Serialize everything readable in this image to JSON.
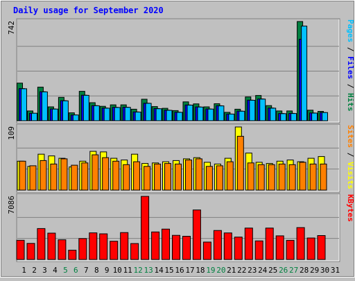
{
  "chart_data": [
    {
      "type": "bar",
      "title": "Daily usage for September 2020",
      "panel": "hits-files-pages",
      "ymax_label": "742",
      "ylim": [
        0,
        742
      ],
      "legend": [
        {
          "text": "Pages",
          "color": "#00c0ff"
        },
        {
          "text": "Files",
          "color": "#0000ff"
        },
        {
          "text": "Hits",
          "color": "#008040"
        }
      ],
      "legend_separator": " / ",
      "categories": [
        "1",
        "2",
        "3",
        "4",
        "5",
        "6",
        "7",
        "8",
        "9",
        "10",
        "11",
        "12",
        "13",
        "14",
        "15",
        "16",
        "17",
        "18",
        "19",
        "20",
        "21",
        "22",
        "23",
        "24",
        "25",
        "26",
        "27",
        "28",
        "29",
        "30",
        "31"
      ],
      "series": [
        {
          "name": "Hits",
          "color": "#008040",
          "values": [
            281,
            73,
            251,
            104,
            175,
            59,
            220,
            135,
            108,
            119,
            119,
            86,
            161,
            106,
            93,
            76,
            141,
            126,
            104,
            127,
            63,
            86,
            178,
            189,
            113,
            73,
            73,
            742,
            79,
            70,
            0
          ]
        },
        {
          "name": "Files",
          "color": "#0000ff",
          "values": [
            240,
            55,
            217,
            88,
            150,
            43,
            191,
            113,
            95,
            100,
            101,
            66,
            131,
            91,
            79,
            64,
            118,
            103,
            88,
            112,
            50,
            72,
            154,
            163,
            95,
            54,
            55,
            609,
            58,
            61,
            0
          ]
        },
        {
          "name": "Pages",
          "color": "#00c0ff",
          "values": [
            239,
            56,
            216,
            87,
            149,
            43,
            190,
            112,
            94,
            99,
            100,
            65,
            130,
            90,
            78,
            63,
            117,
            102,
            87,
            111,
            50,
            71,
            153,
            162,
            94,
            53,
            54,
            708,
            57,
            61,
            0
          ]
        }
      ]
    },
    {
      "type": "bar",
      "panel": "visits-sites",
      "ymax_label": "109",
      "ylim": [
        0,
        109
      ],
      "legend": [
        {
          "text": "Sites",
          "color": "#ff8000"
        },
        {
          "text": "Visits",
          "color": "#ffff00"
        }
      ],
      "legend_separator": " / ",
      "series": [
        {
          "name": "Visits",
          "color": "#ffff00",
          "values": [
            50,
            41,
            62,
            59,
            55,
            40,
            50,
            67,
            66,
            55,
            52,
            62,
            46,
            47,
            49,
            51,
            54,
            56,
            48,
            45,
            55,
            109,
            64,
            48,
            46,
            50,
            52,
            49,
            55,
            58,
            0
          ]
        },
        {
          "name": "Sites",
          "color": "#ff8000",
          "values": [
            50,
            42,
            51,
            45,
            54,
            43,
            47,
            61,
            56,
            50,
            44,
            49,
            41,
            45,
            46,
            45,
            52,
            54,
            41,
            42,
            49,
            93,
            47,
            44,
            44,
            45,
            44,
            48,
            45,
            45,
            0
          ]
        }
      ]
    },
    {
      "type": "bar",
      "panel": "kbytes",
      "ymax_label": "7086",
      "ylim": [
        0,
        7086
      ],
      "legend": [
        {
          "text": "KBytes",
          "color": "#ff0000"
        }
      ],
      "series": [
        {
          "name": "KBytes",
          "color": "#ff0000",
          "values": [
            2160,
            1809,
            3470,
            2960,
            2208,
            1045,
            2350,
            2987,
            2878,
            2045,
            3020,
            1788,
            7086,
            3090,
            3409,
            2710,
            2610,
            5560,
            1956,
            3251,
            2980,
            2515,
            3526,
            2090,
            3527,
            2655,
            2153,
            3580,
            2412,
            2688,
            0
          ]
        }
      ]
    }
  ],
  "x_axis": {
    "labels": [
      "1",
      "2",
      "3",
      "4",
      "5",
      "6",
      "7",
      "8",
      "9",
      "10",
      "11",
      "12",
      "13",
      "14",
      "15",
      "16",
      "17",
      "18",
      "19",
      "20",
      "21",
      "22",
      "23",
      "24",
      "25",
      "26",
      "27",
      "28",
      "29",
      "30",
      "31"
    ],
    "weekend_days": [
      "5",
      "6",
      "12",
      "13",
      "19",
      "20",
      "26",
      "27"
    ],
    "weekday_color": "#000000",
    "weekend_color": "#008040"
  },
  "colors": {
    "background": "#c0c0c0",
    "plot_background": "#c0c0c0",
    "title": "#0000ff",
    "border_dark": "#808080",
    "border_light": "#ffffff",
    "gridline": "#808080",
    "bar_outline": "#000000"
  }
}
